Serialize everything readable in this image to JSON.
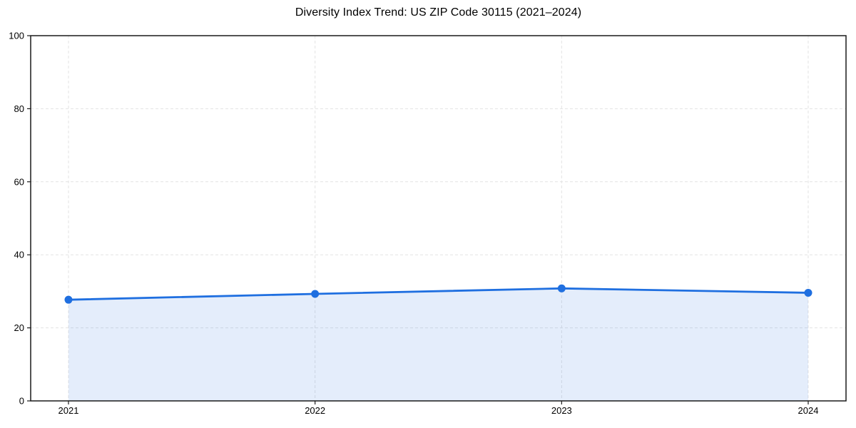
{
  "page": {
    "background_color": "#ffffff"
  },
  "chart_data": {
    "type": "area",
    "title": "Diversity Index Trend: US ZIP Code 30115 (2021–2024)",
    "categories": [
      "2021",
      "2022",
      "2023",
      "2024"
    ],
    "series": [
      {
        "name": "Diversity Index",
        "values": [
          27.7,
          29.3,
          30.8,
          29.6
        ]
      }
    ],
    "xlabel": "",
    "ylabel": "",
    "ylim": [
      0,
      100
    ],
    "yticks": [
      0,
      20,
      40,
      60,
      80,
      100
    ],
    "grid": "dashed gridlines on both axes",
    "legend_position": "none",
    "marker": "filled-circle",
    "colors": {
      "line": "#1f6fe0",
      "marker": "#1f6fe0",
      "fill": "#1f6fe0",
      "fill_opacity": 0.12,
      "grid": "#e3e3e3",
      "spine": "#1a1a1a",
      "text": "#000000"
    }
  }
}
